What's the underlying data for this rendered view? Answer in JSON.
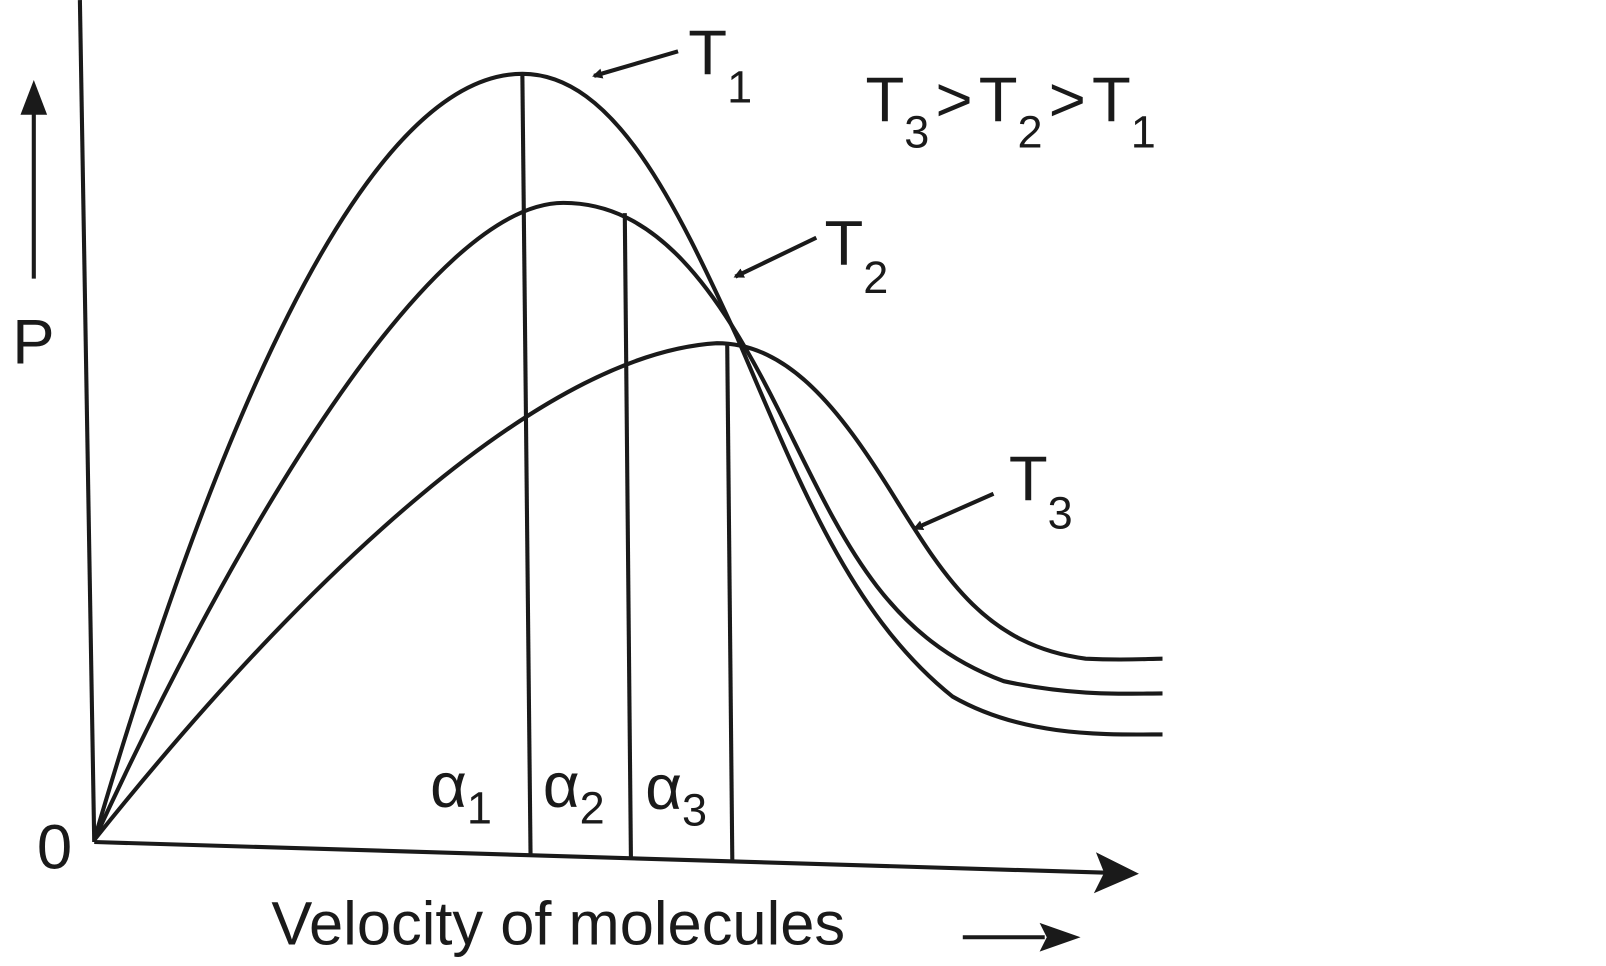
{
  "axes": {
    "y_label": "P",
    "origin": "0",
    "x_label": "Velocity of molecules"
  },
  "curves": [
    {
      "symbol": "T",
      "subscript": "1"
    },
    {
      "symbol": "T",
      "subscript": "2"
    },
    {
      "symbol": "T",
      "subscript": "3"
    }
  ],
  "relation": {
    "terms": [
      {
        "symbol": "T",
        "subscript": "3"
      },
      {
        "symbol": "T",
        "subscript": "2"
      },
      {
        "symbol": "T",
        "subscript": "1"
      }
    ],
    "operator": ">"
  },
  "peaks": [
    {
      "symbol": "α",
      "subscript": "1"
    },
    {
      "symbol": "α",
      "subscript": "2"
    },
    {
      "symbol": "α",
      "subscript": "3"
    }
  ]
}
